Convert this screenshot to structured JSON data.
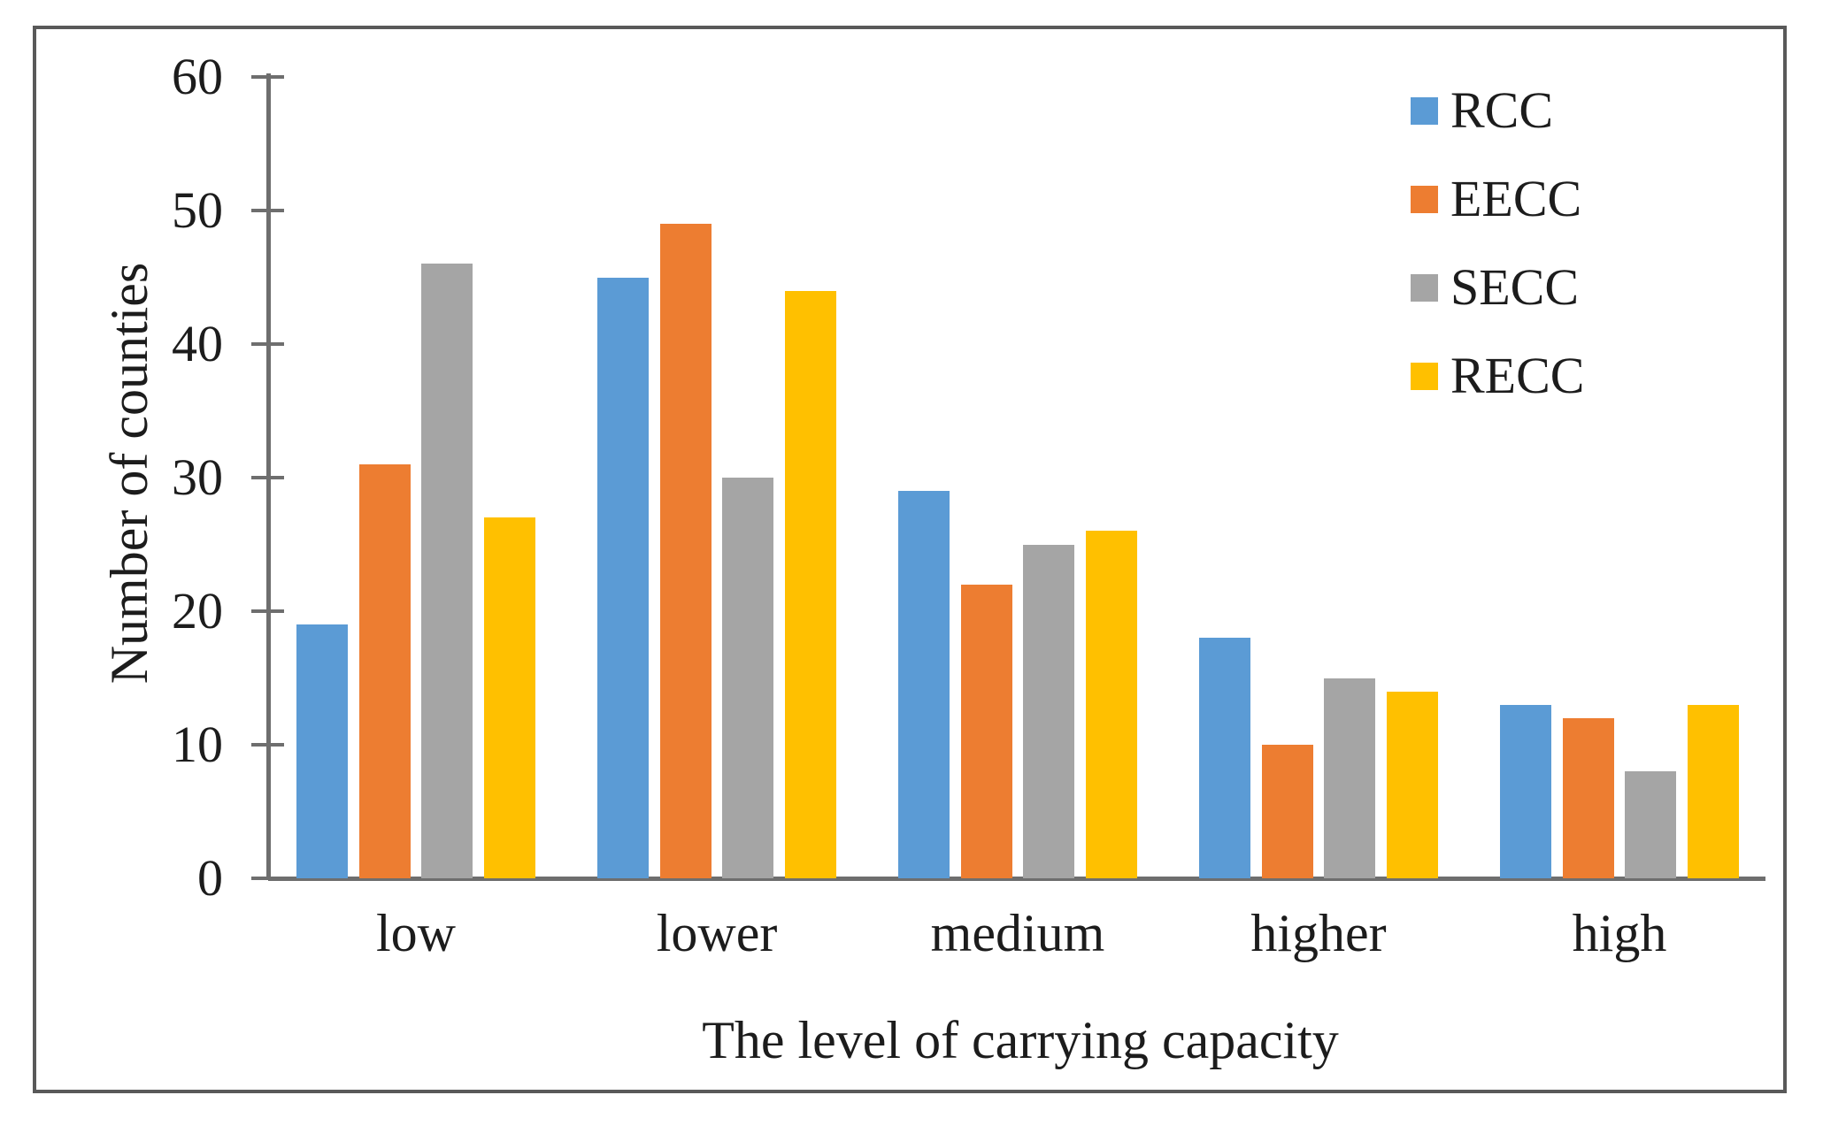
{
  "figure": {
    "border_color": "#595959",
    "background_color": "#ffffff",
    "axis_color": "#6e6e6e",
    "text_color": "#1c1c1c"
  },
  "chart_data": {
    "type": "bar",
    "title": "",
    "categories": [
      "low",
      "lower",
      "medium",
      "higher",
      "high"
    ],
    "series": [
      {
        "name": "RCC",
        "color": "#5B9BD5",
        "values": [
          19,
          45,
          29,
          18,
          13
        ]
      },
      {
        "name": "EECC",
        "color": "#ED7D31",
        "values": [
          31,
          49,
          22,
          10,
          12
        ]
      },
      {
        "name": "SECC",
        "color": "#A5A5A5",
        "values": [
          46,
          30,
          25,
          15,
          8
        ]
      },
      {
        "name": "RECC",
        "color": "#FFC000",
        "values": [
          27,
          44,
          26,
          14,
          13
        ]
      }
    ],
    "xlabel": "The level of carrying capacity",
    "ylabel": "Number of counties",
    "ylim": [
      0,
      60
    ],
    "y_ticks": [
      0,
      10,
      20,
      30,
      40,
      50,
      60
    ],
    "grid": false,
    "legend_position": "top-right"
  }
}
